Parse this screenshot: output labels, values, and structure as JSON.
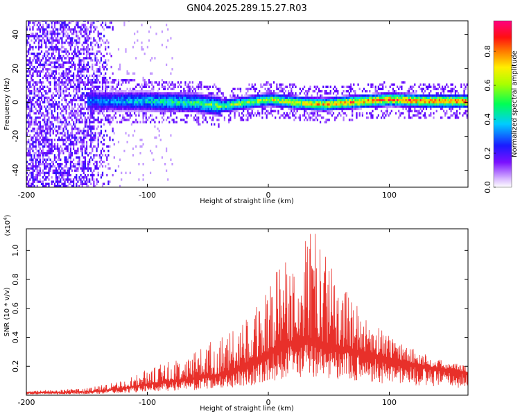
{
  "figure_title": "GN04.2025.289.15.27.R03",
  "chart_data": [
    {
      "type": "heatmap",
      "title": "",
      "xlabel": "Height of straight line (km)",
      "ylabel": "Frequency (Hz)",
      "xlim": [
        -200,
        165
      ],
      "ylim": [
        -50,
        48
      ],
      "xticks": [
        -200,
        -100,
        0,
        100
      ],
      "xtick_labels": [
        "-200",
        "-100",
        "0",
        "100"
      ],
      "yticks": [
        -40,
        -20,
        0,
        20,
        40
      ],
      "ytick_labels": [
        "-40",
        "-20",
        "0",
        "20",
        "40"
      ],
      "colorbar": {
        "label": "Normalized spectral amplitude",
        "range": [
          0,
          0.98
        ],
        "ticks": [
          0.0,
          0.2,
          0.4,
          0.6,
          0.8
        ],
        "tick_labels": [
          "0.0",
          "0.2",
          "0.4",
          "0.6",
          "0.8"
        ],
        "colormap": [
          "#ffffff",
          "#6a00ff",
          "#0022ff",
          "#00ccff",
          "#00ff66",
          "#ccff00",
          "#ffcc00",
          "#ff4400",
          "#ff0066"
        ]
      },
      "band_center_hz": [
        {
          "x": -150,
          "y": 0
        },
        {
          "x": -100,
          "y": 0
        },
        {
          "x": -60,
          "y": -1
        },
        {
          "x": -40,
          "y": -3
        },
        {
          "x": -20,
          "y": -1
        },
        {
          "x": 0,
          "y": 1
        },
        {
          "x": 25,
          "y": -1
        },
        {
          "x": 45,
          "y": -2
        },
        {
          "x": 60,
          "y": -1
        },
        {
          "x": 80,
          "y": 0
        },
        {
          "x": 100,
          "y": 1
        },
        {
          "x": 130,
          "y": 0
        },
        {
          "x": 165,
          "y": 0
        }
      ],
      "noise_region_x": [
        -200,
        -125
      ]
    },
    {
      "type": "line",
      "title": "",
      "xlabel": "Height of straight line (km)",
      "ylabel": "SNR (10 * v/v)",
      "y_multiplier": "(x10",
      "y_multiplier_exp": "4",
      "y_multiplier_close": ")",
      "xlim": [
        -200,
        165
      ],
      "ylim": [
        0,
        1.15
      ],
      "xticks": [
        -200,
        -100,
        0,
        100
      ],
      "xtick_labels": [
        "-200",
        "-100",
        "0",
        "100"
      ],
      "yticks": [
        0.2,
        0.4,
        0.6,
        0.8,
        1.0
      ],
      "ytick_labels": [
        "0.2",
        "0.4",
        "0.6",
        "0.8",
        "1.0"
      ],
      "line_color": "#e8302a",
      "envelope": {
        "x": [
          -200,
          -170,
          -150,
          -140,
          -120,
          -100,
          -80,
          -60,
          -40,
          -20,
          0,
          10,
          20,
          30,
          40,
          50,
          60,
          80,
          100,
          120,
          140,
          165
        ],
        "base": [
          0.02,
          0.02,
          0.025,
          0.03,
          0.05,
          0.08,
          0.1,
          0.12,
          0.15,
          0.2,
          0.3,
          0.35,
          0.38,
          0.4,
          0.38,
          0.36,
          0.34,
          0.3,
          0.26,
          0.22,
          0.19,
          0.16
        ],
        "peak": [
          0.03,
          0.04,
          0.05,
          0.07,
          0.1,
          0.18,
          0.24,
          0.32,
          0.42,
          0.5,
          0.82,
          0.9,
          1.0,
          1.1,
          1.15,
          0.95,
          0.78,
          0.55,
          0.42,
          0.32,
          0.25,
          0.2
        ]
      }
    }
  ]
}
